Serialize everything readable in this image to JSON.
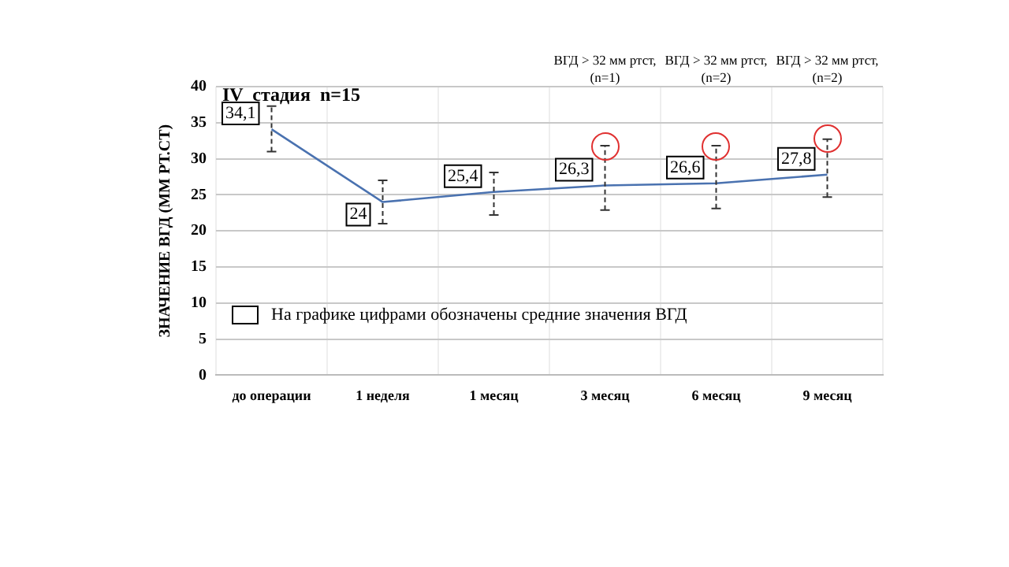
{
  "chart_data": {
    "type": "line",
    "title": "IV  стадия  n=15",
    "ylabel": "ЗНАЧЕНИЕ ВГД (ММ РТ.СТ)",
    "categories": [
      "до операции",
      "1 неделя",
      "1 месяц",
      "3 месяц",
      "6 месяц",
      "9 месяц"
    ],
    "series": [
      {
        "color": "#4a72b0",
        "values": [
          34.1,
          24,
          25.4,
          26.3,
          26.6,
          27.8
        ],
        "value_labels": [
          "34,1",
          "24",
          "25,4",
          "26,3",
          "26,6",
          "27,8"
        ],
        "errors": [
          [
            31,
            37.3
          ],
          [
            21,
            27
          ],
          [
            22.2,
            28.1
          ],
          [
            22.9,
            31.8
          ],
          [
            23.1,
            31.8
          ],
          [
            24.7,
            32.7
          ]
        ]
      }
    ],
    "ylim": [
      0,
      40
    ],
    "yticks": [
      0,
      5,
      10,
      15,
      20,
      25,
      30,
      35,
      40
    ],
    "grid": true,
    "legend": false,
    "marker": "none",
    "annotations": [
      "ВГД > 32 мм ртст,\n(n=1)",
      "ВГД > 32 мм ртст,\n(n=2)",
      "ВГД > 32 мм ртст,\n(n=2)",
      "На графике цифрами обозначены средние значения ВГД"
    ]
  }
}
